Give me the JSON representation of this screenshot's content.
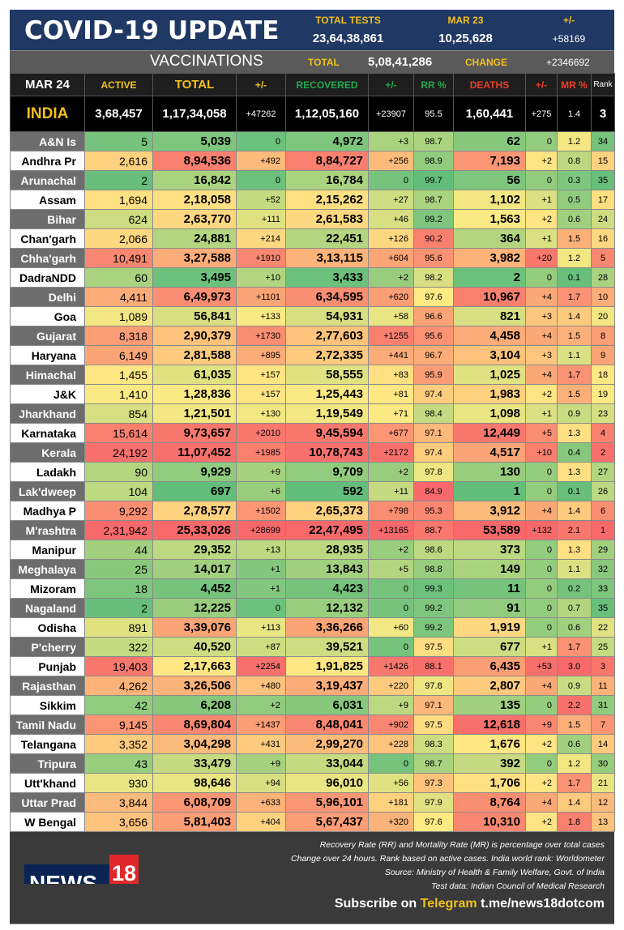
{
  "header": {
    "title": "COVID-19 UPDATE",
    "tests_label": "TOTAL TESTS",
    "tests_value": "23,64,38,861",
    "date_label": "MAR 23",
    "date_value": "10,25,628",
    "change_label": "+/-",
    "change_value": "+58169"
  },
  "vaccinations": {
    "label": "VACCINATIONS",
    "total_label": "TOTAL",
    "total_value": "5,08,41,286",
    "change_label": "CHANGE",
    "change_value": "+2346692"
  },
  "columns": [
    "MAR 24",
    "ACTIVE",
    "TOTAL",
    "+/-",
    "RECOVERED",
    "+/-",
    "RR %",
    "DEATHS",
    "+/-",
    "MR %",
    "Rank"
  ],
  "column_colors": [
    "#ffffff",
    "#f3c11a",
    "#f3c11a",
    "#f3c11a",
    "#22a94f",
    "#22a94f",
    "#22a94f",
    "#e8402a",
    "#e8402a",
    "#e8402a",
    "#ffffff"
  ],
  "india": [
    "INDIA",
    "3,68,457",
    "1,17,34,058",
    "+47262",
    "1,12,05,160",
    "+23907",
    "95.5",
    "1,60,441",
    "+275",
    "1.4",
    "3"
  ],
  "rows": [
    [
      "A&N Is",
      "5",
      "5,039",
      "0",
      "4,972",
      "+3",
      "98.7",
      "62",
      "0",
      "1.2",
      "34"
    ],
    [
      "Andhra Pr",
      "2,616",
      "8,94,536",
      "+492",
      "8,84,727",
      "+256",
      "98.9",
      "7,193",
      "+2",
      "0.8",
      "15"
    ],
    [
      "Arunachal",
      "2",
      "16,842",
      "0",
      "16,784",
      "0",
      "99.7",
      "56",
      "0",
      "0.3",
      "35"
    ],
    [
      "Assam",
      "1,694",
      "2,18,058",
      "+52",
      "2,15,262",
      "+27",
      "98.7",
      "1,102",
      "+1",
      "0.5",
      "17"
    ],
    [
      "Bihar",
      "624",
      "2,63,770",
      "+111",
      "2,61,583",
      "+46",
      "99.2",
      "1,563",
      "+2",
      "0.6",
      "24"
    ],
    [
      "Chan'garh",
      "2,066",
      "24,881",
      "+214",
      "22,451",
      "+126",
      "90.2",
      "364",
      "+1",
      "1.5",
      "16"
    ],
    [
      "Chha'garh",
      "10,491",
      "3,27,588",
      "+1910",
      "3,13,115",
      "+604",
      "95.6",
      "3,982",
      "+20",
      "1.2",
      "5"
    ],
    [
      "DadraNDD",
      "60",
      "3,495",
      "+10",
      "3,433",
      "+2",
      "98.2",
      "2",
      "0",
      "0.1",
      "28"
    ],
    [
      "Delhi",
      "4,411",
      "6,49,973",
      "+1101",
      "6,34,595",
      "+620",
      "97.6",
      "10,967",
      "+4",
      "1.7",
      "10"
    ],
    [
      "Goa",
      "1,089",
      "56,841",
      "+133",
      "54,931",
      "+58",
      "96.6",
      "821",
      "+3",
      "1.4",
      "20"
    ],
    [
      "Gujarat",
      "8,318",
      "2,90,379",
      "+1730",
      "2,77,603",
      "+1255",
      "95.6",
      "4,458",
      "+4",
      "1.5",
      "8"
    ],
    [
      "Haryana",
      "6,149",
      "2,81,588",
      "+895",
      "2,72,335",
      "+441",
      "96.7",
      "3,104",
      "+3",
      "1.1",
      "9"
    ],
    [
      "Himachal",
      "1,455",
      "61,035",
      "+157",
      "58,555",
      "+83",
      "95.9",
      "1,025",
      "+4",
      "1.7",
      "18"
    ],
    [
      "J&K",
      "1,410",
      "1,28,836",
      "+157",
      "1,25,443",
      "+81",
      "97.4",
      "1,983",
      "+2",
      "1.5",
      "19"
    ],
    [
      "Jharkhand",
      "854",
      "1,21,501",
      "+130",
      "1,19,549",
      "+71",
      "98.4",
      "1,098",
      "+1",
      "0.9",
      "23"
    ],
    [
      "Karnataka",
      "15,614",
      "9,73,657",
      "+2010",
      "9,45,594",
      "+677",
      "97.1",
      "12,449",
      "+5",
      "1.3",
      "4"
    ],
    [
      "Kerala",
      "24,192",
      "11,07,452",
      "+1985",
      "10,78,743",
      "+2172",
      "97.4",
      "4,517",
      "+10",
      "0.4",
      "2"
    ],
    [
      "Ladakh",
      "90",
      "9,929",
      "+9",
      "9,709",
      "+2",
      "97.8",
      "130",
      "0",
      "1.3",
      "27"
    ],
    [
      "Lak'dweep",
      "104",
      "697",
      "+6",
      "592",
      "+11",
      "84.9",
      "1",
      "0",
      "0.1",
      "26"
    ],
    [
      "Madhya P",
      "9,292",
      "2,78,577",
      "+1502",
      "2,65,373",
      "+798",
      "95.3",
      "3,912",
      "+4",
      "1.4",
      "6"
    ],
    [
      "M'rashtra",
      "2,31,942",
      "25,33,026",
      "+28699",
      "22,47,495",
      "+13165",
      "88.7",
      "53,589",
      "+132",
      "2.1",
      "1"
    ],
    [
      "Manipur",
      "44",
      "29,352",
      "+13",
      "28,935",
      "+2",
      "98.6",
      "373",
      "0",
      "1.3",
      "29"
    ],
    [
      "Meghalaya",
      "25",
      "14,017",
      "+1",
      "13,843",
      "+5",
      "98.8",
      "149",
      "0",
      "1.1",
      "32"
    ],
    [
      "Mizoram",
      "18",
      "4,452",
      "+1",
      "4,423",
      "0",
      "99.3",
      "11",
      "0",
      "0.2",
      "33"
    ],
    [
      "Nagaland",
      "2",
      "12,225",
      "0",
      "12,132",
      "0",
      "99.2",
      "91",
      "0",
      "0.7",
      "35"
    ],
    [
      "Odisha",
      "891",
      "3,39,076",
      "+113",
      "3,36,266",
      "+60",
      "99.2",
      "1,919",
      "0",
      "0.6",
      "22"
    ],
    [
      "P'cherry",
      "322",
      "40,520",
      "+87",
      "39,521",
      "0",
      "97.5",
      "677",
      "+1",
      "1.7",
      "25"
    ],
    [
      "Punjab",
      "19,403",
      "2,17,663",
      "+2254",
      "1,91,825",
      "+1426",
      "88.1",
      "6,435",
      "+53",
      "3.0",
      "3"
    ],
    [
      "Rajasthan",
      "4,262",
      "3,26,506",
      "+480",
      "3,19,437",
      "+220",
      "97.8",
      "2,807",
      "+4",
      "0.9",
      "11"
    ],
    [
      "Sikkim",
      "42",
      "6,208",
      "+2",
      "6,031",
      "+9",
      "97.1",
      "135",
      "0",
      "2.2",
      "31"
    ],
    [
      "Tamil Nadu",
      "9,145",
      "8,69,804",
      "+1437",
      "8,48,041",
      "+902",
      "97.5",
      "12,618",
      "+9",
      "1.5",
      "7"
    ],
    [
      "Telangana",
      "3,352",
      "3,04,298",
      "+431",
      "2,99,270",
      "+228",
      "98.3",
      "1,676",
      "+2",
      "0.6",
      "14"
    ],
    [
      "Tripura",
      "43",
      "33,479",
      "+9",
      "33,044",
      "0",
      "98.7",
      "392",
      "0",
      "1.2",
      "30"
    ],
    [
      "Utt'khand",
      "930",
      "98,646",
      "+94",
      "96,010",
      "+56",
      "97.3",
      "1,706",
      "+2",
      "1.7",
      "21"
    ],
    [
      "Uttar Prad",
      "3,844",
      "6,08,709",
      "+633",
      "5,96,101",
      "+181",
      "97.9",
      "8,764",
      "+4",
      "1.4",
      "12"
    ],
    [
      "W Bengal",
      "3,656",
      "5,81,403",
      "+404",
      "5,67,437",
      "+320",
      "97.6",
      "10,310",
      "+2",
      "1.8",
      "13"
    ]
  ],
  "scale_colors": {
    "low": "#63be7b",
    "mid": "#ffeb84",
    "high": "#f8696b"
  },
  "footer": {
    "lines": [
      "Recovery Rate (RR) and Mortality Rate (MR) is percentage over total cases",
      "Change over 24 hours. Rank based on active cases. India world rank: Worldometer",
      "Source: Ministry of Health & Family Welfare, Govt. of India",
      "Test data: Indian Council of Medical Research"
    ],
    "subscribe": "Subscribe on",
    "telegram": "Telegram",
    "link": "t.me/news18dotcom",
    "logo_text": "NEWS",
    "logo_num": "18"
  }
}
